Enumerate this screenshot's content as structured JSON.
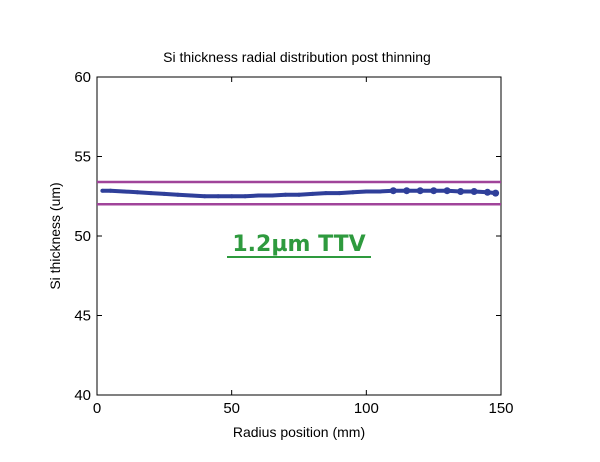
{
  "chart_data": {
    "type": "scatter",
    "title": "Si thickness radial distribution post thinning",
    "xlabel": "Radius position (mm)",
    "ylabel": "Si thickness (um)",
    "xlim": [
      0,
      150
    ],
    "ylim": [
      40,
      60
    ],
    "x_ticks": [
      "0",
      "50",
      "100",
      "150"
    ],
    "y_ticks": [
      "40",
      "45",
      "50",
      "55",
      "60"
    ],
    "grid": false,
    "series": [
      {
        "x": [
          2,
          5,
          10,
          15,
          20,
          25,
          30,
          35,
          40,
          45,
          50,
          55,
          60,
          65,
          70,
          75,
          80,
          85,
          90,
          95,
          100,
          105,
          110,
          115,
          120,
          125,
          130,
          135,
          140,
          145,
          148
        ],
        "y": [
          52.85,
          52.85,
          52.8,
          52.75,
          52.7,
          52.65,
          52.6,
          52.55,
          52.5,
          52.5,
          52.5,
          52.5,
          52.55,
          52.55,
          52.6,
          52.6,
          52.65,
          52.7,
          52.7,
          52.75,
          52.8,
          52.8,
          52.85,
          52.85,
          52.85,
          52.85,
          52.85,
          52.8,
          52.8,
          52.75,
          52.7
        ],
        "color": "#2f3f9a"
      }
    ],
    "reference_lines": [
      {
        "y": 53.4,
        "color": "#a0449a"
      },
      {
        "y": 52.0,
        "color": "#a0449a"
      }
    ],
    "annotation": {
      "text": "1.2µm TTV",
      "x": 75,
      "y": 49.5,
      "color": "#2e9a3e"
    }
  }
}
